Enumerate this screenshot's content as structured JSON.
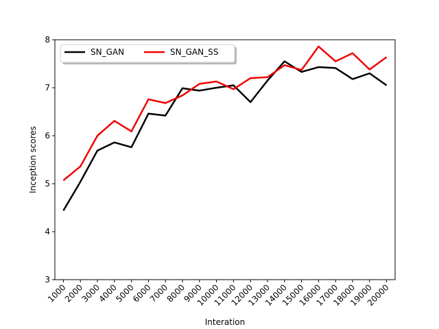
{
  "chart_data": {
    "type": "line",
    "title": "",
    "xlabel": "Interation",
    "ylabel": "Inception scores",
    "ylim": [
      3,
      8
    ],
    "yticks": [
      "3",
      "4",
      "5",
      "6",
      "7",
      "8"
    ],
    "x": [
      1000,
      2000,
      3000,
      4000,
      5000,
      6000,
      7000,
      8000,
      9000,
      10000,
      11000,
      12000,
      13000,
      14000,
      15000,
      16000,
      17000,
      18000,
      19000,
      20000
    ],
    "xtick_labels": [
      "1000",
      "2000",
      "3000",
      "4000",
      "5000",
      "6000",
      "7000",
      "8000",
      "9000",
      "10000",
      "11000",
      "12000",
      "13000",
      "14000",
      "15000",
      "16000",
      "17000",
      "18000",
      "19000",
      "20000"
    ],
    "grid": false,
    "legend_position": "top-left",
    "series": [
      {
        "name": "SN_GAN",
        "color": "#000000",
        "values": [
          4.44,
          5.04,
          5.69,
          5.86,
          5.76,
          6.46,
          6.42,
          6.99,
          6.94,
          7.0,
          7.05,
          6.7,
          7.15,
          7.55,
          7.33,
          7.43,
          7.41,
          7.18,
          7.3,
          7.05
        ]
      },
      {
        "name": "SN_GAN_SS",
        "color": "#ee0000",
        "values": [
          5.07,
          5.36,
          6.0,
          6.31,
          6.09,
          6.76,
          6.68,
          6.84,
          7.08,
          7.13,
          6.97,
          7.2,
          7.22,
          7.47,
          7.37,
          7.86,
          7.55,
          7.72,
          7.38,
          7.64
        ]
      }
    ]
  }
}
